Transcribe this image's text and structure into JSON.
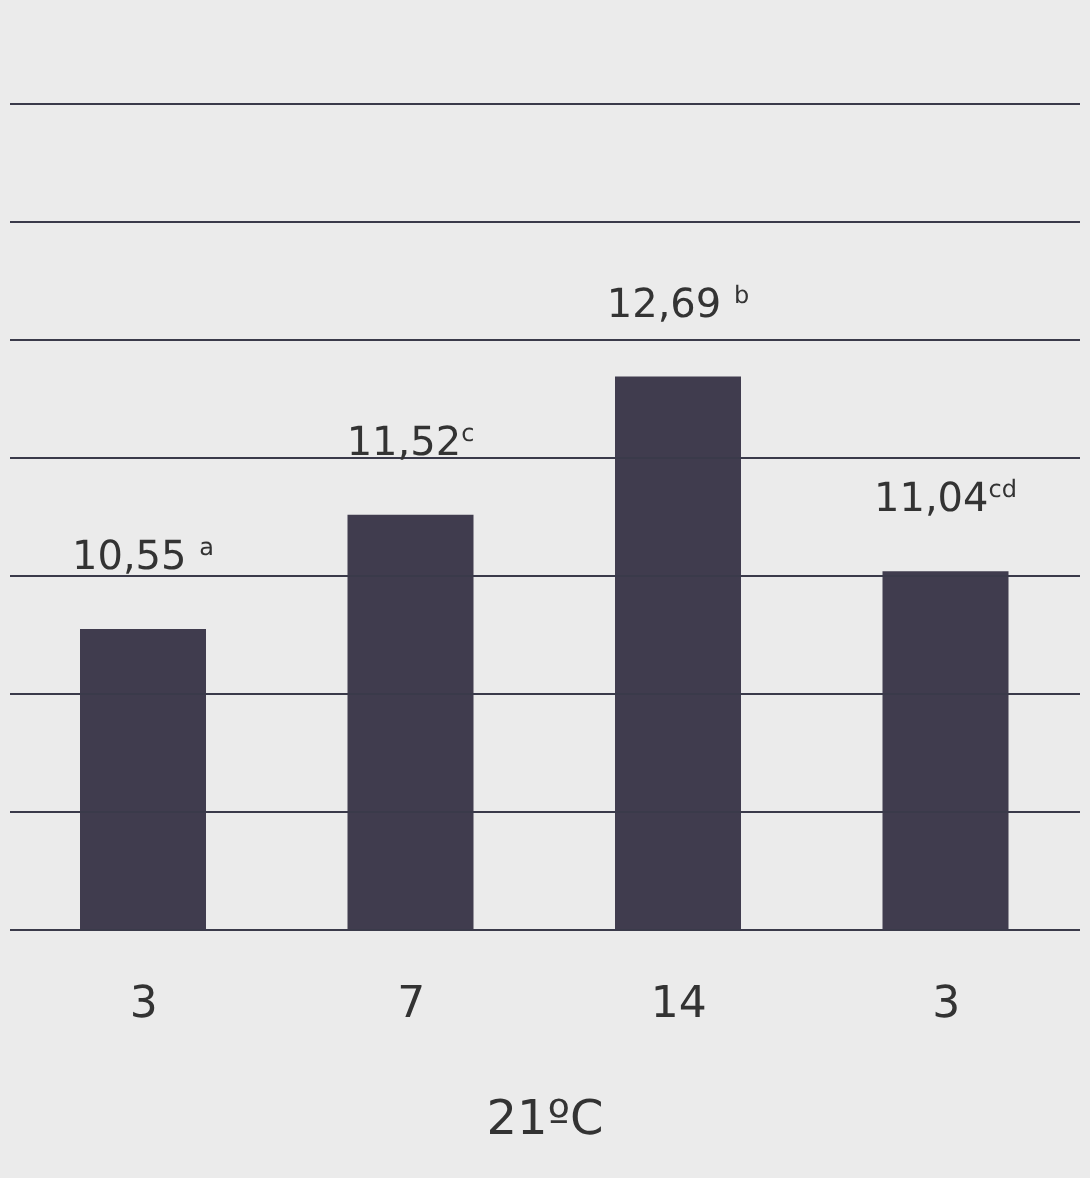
{
  "chart_data": {
    "type": "bar",
    "xlabel": "21ºC",
    "categories": [
      "3",
      "7",
      "14",
      "3"
    ],
    "values": [
      10.55,
      11.52,
      12.69,
      11.04
    ],
    "color": "#403c4e",
    "value_labels": [
      "10,55 $^{a}$",
      "11,52$^{c}$",
      "12,69 $^{b}$",
      "11,04$^{cd}$"
    ],
    "ylim": [
      8,
      15
    ],
    "grid": "y",
    "tick_labels": "x",
    "legend": false
  }
}
